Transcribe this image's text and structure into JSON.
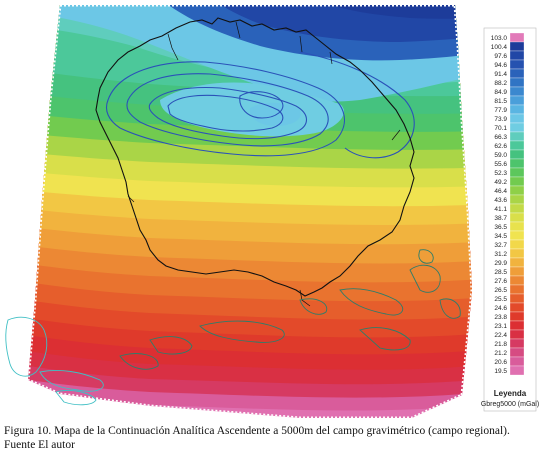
{
  "legend": {
    "title": "Leyenda",
    "subtitle": "Gbreg5000 (mGal)",
    "ticks": [
      "103.0",
      "100.4",
      "97.6",
      "94.6",
      "91.4",
      "88.2",
      "84.9",
      "81.5",
      "77.9",
      "73.9",
      "70.1",
      "66.3",
      "62.6",
      "59.0",
      "55.6",
      "52.3",
      "49.2",
      "46.4",
      "43.6",
      "41.1",
      "38.7",
      "36.5",
      "34.5",
      "32.7",
      "31.2",
      "29.9",
      "28.5",
      "27.6",
      "26.5",
      "25.5",
      "24.6",
      "23.8",
      "23.1",
      "22.4",
      "21.8",
      "21.2",
      "20.6",
      "19.5"
    ],
    "colors": [
      "#e27ab9",
      "#1d3c9a",
      "#2147a6",
      "#2652b0",
      "#2a62ba",
      "#3074c4",
      "#3b88cf",
      "#4a9fda",
      "#5ab5e2",
      "#6cc7e6",
      "#6fcde2",
      "#5fcdbd",
      "#4cc89a",
      "#45c27f",
      "#4dc46c",
      "#5cc75c",
      "#72cb4f",
      "#8fd048",
      "#aad547",
      "#c3da48",
      "#d9df4a",
      "#e8e24d",
      "#f0e350",
      "#f2d84a",
      "#f2c744",
      "#f1b33e",
      "#ef9e39",
      "#ec8834",
      "#e9732f",
      "#e65e2c",
      "#e34a2a",
      "#df3a2b",
      "#dc2f33",
      "#d93044",
      "#d63a62",
      "#d64b82",
      "#d95c9b",
      "#e070b0"
    ]
  },
  "caption": {
    "line1": "Figura 10. Mapa de la Continuación Analítica Ascendente a 5000m del campo gravimétrico (campo regional).",
    "line2": "Fuente El autor"
  }
}
